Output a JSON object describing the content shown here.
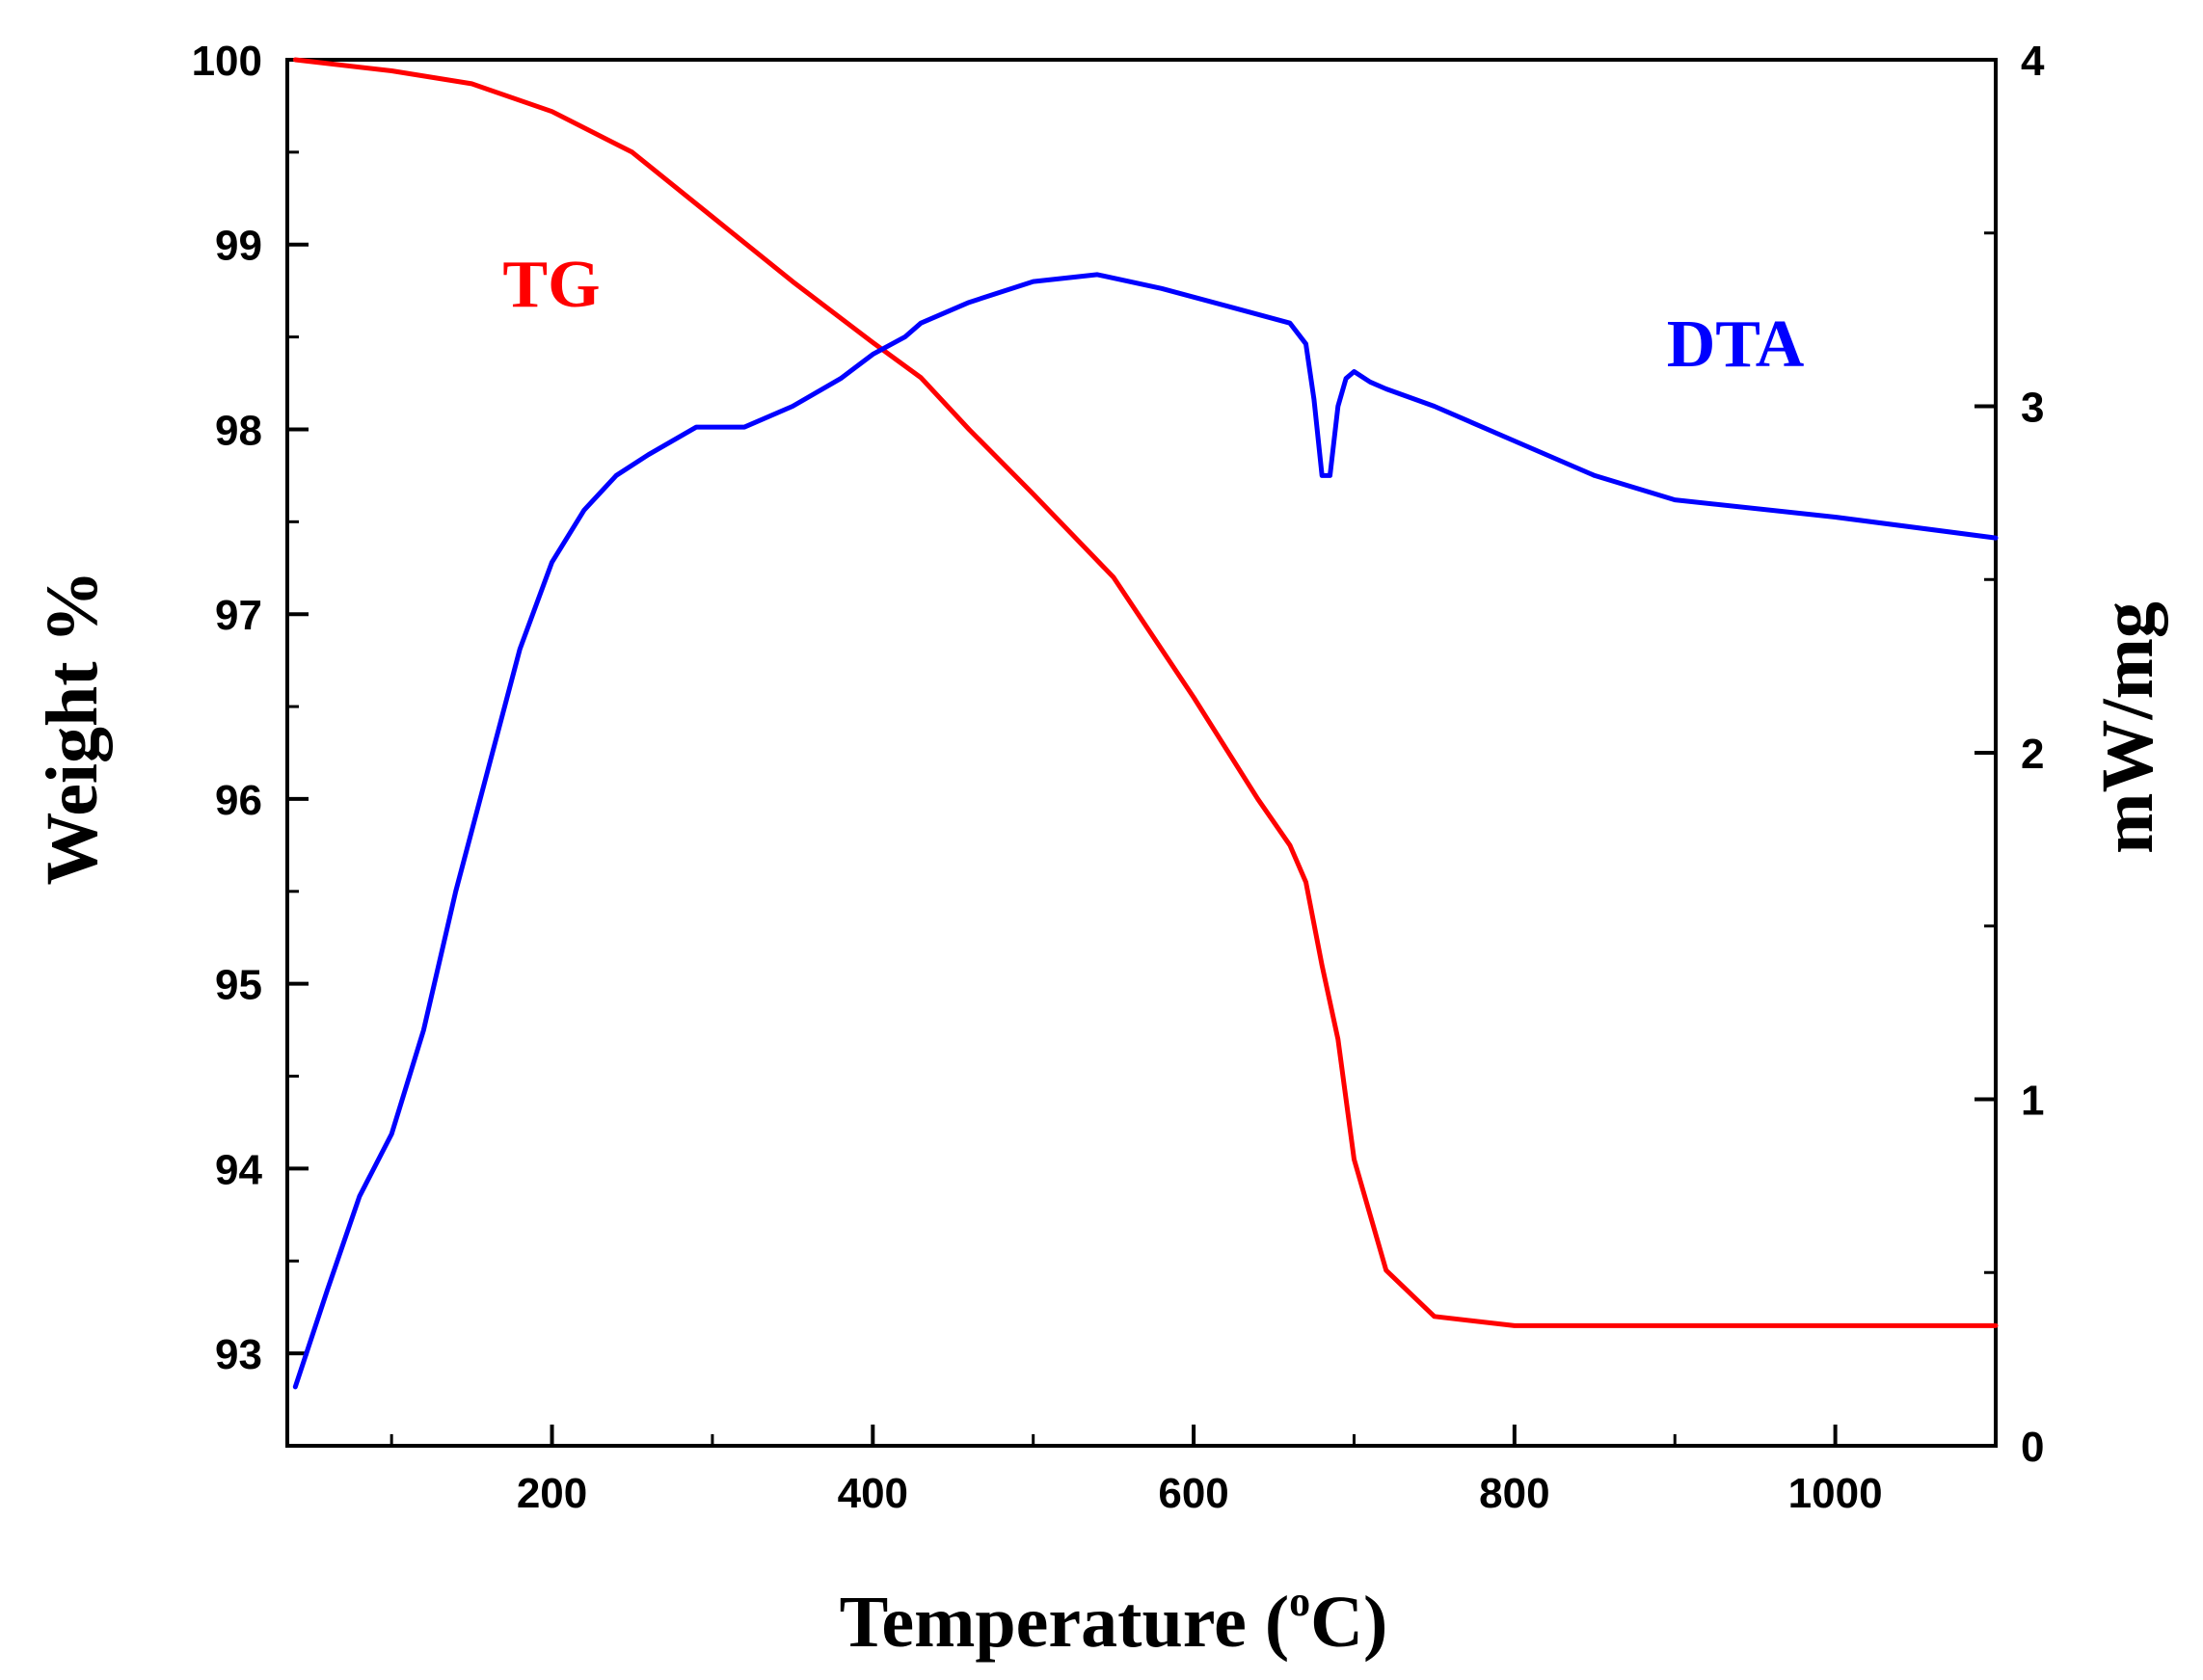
{
  "chart_data": {
    "type": "line",
    "title": "",
    "xlabel": "Temperature (",
    "xlabel_sup": "o",
    "xlabel_suffix": "C)",
    "ylabel_left": "Weight %",
    "ylabel_right": "mW/mg",
    "xlim": [
      35,
      1100
    ],
    "ylim_left": [
      92.5,
      100
    ],
    "ylim_right": [
      0,
      4
    ],
    "x_ticks": [
      200,
      400,
      600,
      800,
      1000
    ],
    "x_tick_labels": [
      "200",
      "400",
      "600",
      "800",
      "1000"
    ],
    "y_left_ticks": [
      93,
      94,
      95,
      96,
      97,
      98,
      99,
      100
    ],
    "y_left_tick_labels": [
      "93",
      "94",
      "95",
      "96",
      "97",
      "98",
      "99",
      "100"
    ],
    "y_right_ticks": [
      0,
      1,
      2,
      3,
      4
    ],
    "y_right_tick_labels": [
      "0",
      "1",
      "2",
      "3",
      "4"
    ],
    "grid": false,
    "series": [
      {
        "name": "TG",
        "axis": "left",
        "color": "#ff0000",
        "label": "TG",
        "x": [
          40,
          100,
          150,
          200,
          250,
          300,
          350,
          400,
          430,
          460,
          500,
          550,
          600,
          640,
          660,
          670,
          680,
          690,
          700,
          720,
          750,
          800,
          900,
          1000,
          1100
        ],
        "y": [
          100.0,
          99.94,
          99.87,
          99.72,
          99.5,
          99.15,
          98.8,
          98.47,
          98.28,
          98.0,
          97.65,
          97.2,
          96.55,
          96.0,
          95.75,
          95.55,
          95.1,
          94.7,
          94.05,
          93.45,
          93.2,
          93.15,
          93.15,
          93.15,
          93.15
        ]
      },
      {
        "name": "DTA",
        "axis": "right",
        "color": "#0000ff",
        "label": "DTA",
        "x": [
          40,
          60,
          80,
          100,
          120,
          140,
          160,
          180,
          200,
          220,
          240,
          260,
          290,
          320,
          350,
          380,
          400,
          420,
          430,
          460,
          500,
          540,
          580,
          620,
          660,
          670,
          675,
          680,
          685,
          690,
          695,
          700,
          710,
          720,
          750,
          800,
          850,
          900,
          1000,
          1100
        ],
        "y": [
          0.17,
          0.45,
          0.72,
          0.9,
          1.2,
          1.6,
          1.95,
          2.3,
          2.55,
          2.7,
          2.8,
          2.86,
          2.94,
          2.94,
          3.0,
          3.08,
          3.15,
          3.2,
          3.24,
          3.3,
          3.36,
          3.38,
          3.34,
          3.29,
          3.24,
          3.18,
          3.02,
          2.8,
          2.8,
          3.0,
          3.08,
          3.1,
          3.07,
          3.05,
          3.0,
          2.9,
          2.8,
          2.73,
          2.68,
          2.62
        ]
      }
    ]
  }
}
